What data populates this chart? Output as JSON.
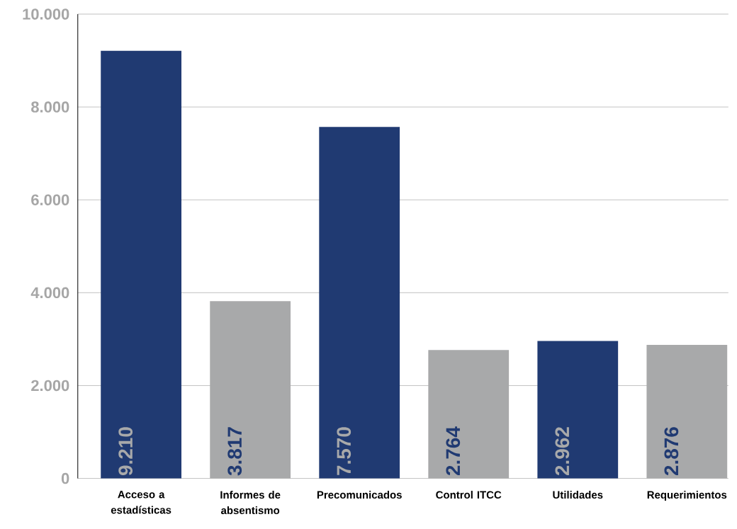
{
  "chart_data": {
    "type": "bar",
    "categories": [
      "Acceso a estadísticas",
      "Informes de absentismo",
      "Precomunicados",
      "Control ITCC",
      "Utilidades",
      "Requerimientos"
    ],
    "values": [
      9210,
      3817,
      7570,
      2764,
      2962,
      2876
    ],
    "colors": [
      "#203a72",
      "#a8a9aa",
      "#203a72",
      "#a8a9aa",
      "#203a72",
      "#a8a9aa"
    ],
    "value_labels": [
      "9.210",
      "3.817",
      "7.570",
      "2.764",
      "2.962",
      "2.876"
    ],
    "ylim": [
      0,
      10000
    ],
    "yticks": [
      0,
      {
        "value": 2000,
        "label": "2.000"
      },
      {
        "value": 4000,
        "label": "4.000"
      },
      {
        "value": 6000,
        "label": "6.000"
      },
      {
        "value": 8000,
        "label": "8.000"
      },
      {
        "value": 10000,
        "label": "10.000"
      }
    ],
    "grid": "y"
  }
}
